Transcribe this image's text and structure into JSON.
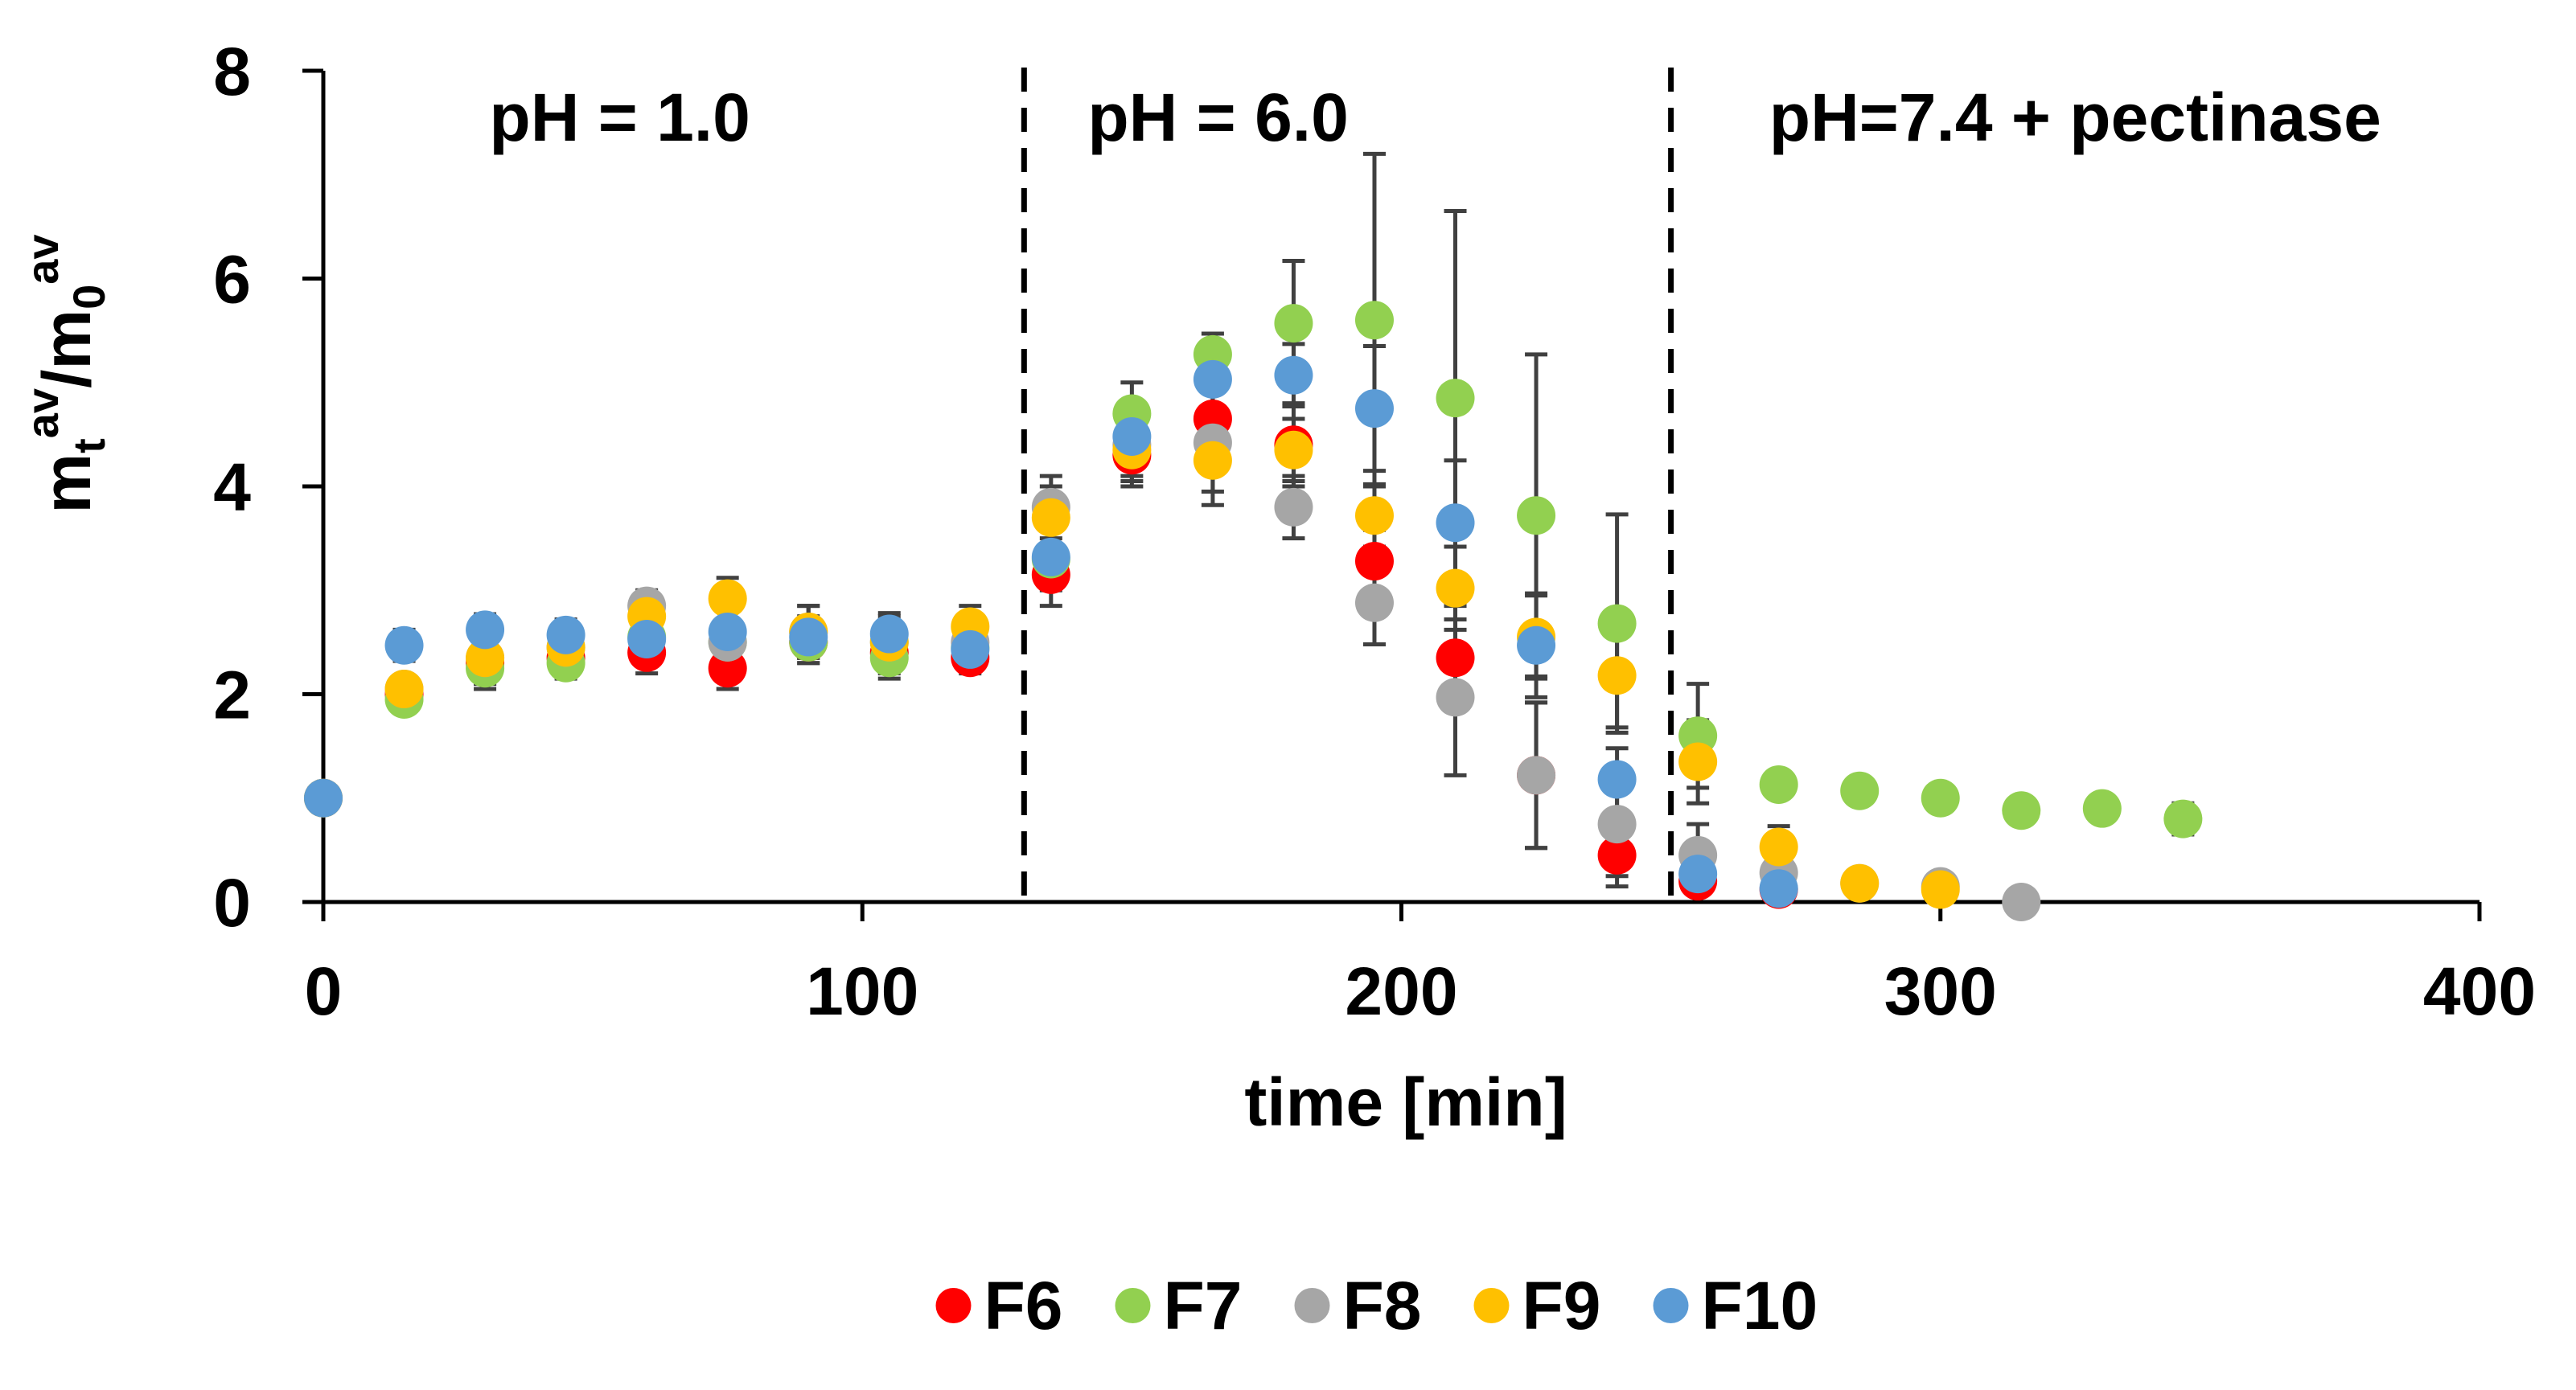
{
  "chart_data": {
    "type": "scatter",
    "title": "",
    "xlabel": "time [min]",
    "ylabel": {
      "base1": "m",
      "sub1": "t",
      "sup1": "av",
      "slash": "/",
      "base2": "m",
      "sub2": "0",
      "sup2": "av"
    },
    "xlim": [
      0,
      400
    ],
    "ylim": [
      0,
      8
    ],
    "x_ticks": [
      0,
      100,
      200,
      300,
      400
    ],
    "y_ticks": [
      0,
      2,
      4,
      6,
      8
    ],
    "grid": false,
    "legend_position": "bottom-center",
    "phase_boundaries": [
      130,
      250
    ],
    "phase_labels": [
      {
        "text": "pH = 1.0",
        "x_center": 55
      },
      {
        "text": "pH = 6.0",
        "x_center": 166
      },
      {
        "text": "pH=7.4 + pectinase",
        "x_center": 325
      }
    ],
    "series": [
      {
        "name": "F6",
        "color": "#ff0000",
        "x": [
          0,
          15,
          30,
          45,
          60,
          75,
          90,
          105,
          120,
          135,
          150,
          165,
          180,
          195,
          210,
          225,
          240,
          255,
          270
        ],
        "y": [
          1.0,
          2.0,
          2.3,
          2.35,
          2.4,
          2.25,
          2.5,
          2.4,
          2.35,
          3.15,
          4.3,
          4.65,
          4.4,
          3.28,
          2.35,
          1.22,
          0.45,
          0.2,
          0.12
        ],
        "err": [
          0.05,
          0.1,
          0.2,
          0.15,
          0.2,
          0.2,
          0.2,
          0.2,
          0.15,
          0.3,
          0.3,
          0.4,
          0.4,
          0.3,
          0.5,
          0.7,
          0.3,
          0.2,
          0.1
        ]
      },
      {
        "name": "F7",
        "color": "#92d050",
        "x": [
          0,
          15,
          30,
          45,
          60,
          75,
          90,
          105,
          120,
          135,
          150,
          165,
          180,
          195,
          210,
          225,
          240,
          255,
          270,
          285,
          300,
          315,
          330,
          345
        ],
        "y": [
          1.0,
          1.95,
          2.25,
          2.3,
          2.55,
          2.5,
          2.5,
          2.35,
          2.45,
          3.3,
          4.7,
          5.27,
          5.57,
          5.6,
          4.85,
          3.72,
          2.68,
          1.6,
          1.13,
          1.07,
          1.0,
          0.88,
          0.9,
          0.8
        ],
        "err": [
          0.05,
          0.1,
          0.2,
          0.15,
          0.2,
          0.2,
          0.2,
          0.2,
          0.2,
          0.3,
          0.3,
          0.2,
          0.6,
          1.6,
          1.8,
          1.55,
          1.05,
          0.5,
          0.1,
          0.05,
          0.05,
          0.05,
          0.05,
          0.15
        ]
      },
      {
        "name": "F8",
        "color": "#a6a6a6",
        "x": [
          0,
          15,
          30,
          45,
          60,
          75,
          90,
          105,
          120,
          135,
          150,
          165,
          180,
          195,
          210,
          225,
          240,
          255,
          270,
          285,
          300,
          315
        ],
        "y": [
          1.0,
          2.05,
          2.35,
          2.45,
          2.85,
          2.5,
          2.6,
          2.5,
          2.5,
          3.8,
          4.4,
          4.42,
          3.8,
          2.88,
          1.97,
          1.22,
          0.75,
          0.45,
          0.28,
          0.18,
          0.15,
          0.0
        ],
        "err": [
          0.05,
          0.1,
          0.25,
          0.15,
          0.15,
          0.15,
          0.25,
          0.2,
          0.2,
          0.3,
          0.3,
          0.6,
          0.3,
          0.4,
          0.75,
          0.7,
          0.5,
          0.3,
          0.1,
          0.05,
          0.05,
          0.02
        ]
      },
      {
        "name": "F9",
        "color": "#ffc000",
        "x": [
          0,
          15,
          30,
          45,
          60,
          75,
          90,
          105,
          120,
          135,
          150,
          165,
          180,
          195,
          210,
          225,
          240,
          255,
          270,
          285,
          300
        ],
        "y": [
          1.0,
          2.05,
          2.35,
          2.45,
          2.75,
          2.92,
          2.6,
          2.5,
          2.65,
          3.7,
          4.35,
          4.25,
          4.35,
          3.72,
          3.02,
          2.55,
          2.18,
          1.35,
          0.53,
          0.18,
          0.12
        ],
        "err": [
          0.05,
          0.1,
          0.2,
          0.15,
          0.2,
          0.2,
          0.25,
          0.25,
          0.2,
          0.3,
          0.3,
          0.3,
          0.3,
          0.3,
          0.4,
          0.4,
          0.5,
          0.4,
          0.2,
          0.05,
          0.05
        ]
      },
      {
        "name": "F10",
        "color": "#5b9bd5",
        "x": [
          0,
          15,
          30,
          45,
          60,
          75,
          90,
          105,
          120,
          135,
          150,
          165,
          180,
          195,
          210,
          225,
          240,
          255,
          270
        ],
        "y": [
          1.0,
          2.47,
          2.62,
          2.57,
          2.53,
          2.6,
          2.55,
          2.58,
          2.43,
          3.32,
          4.48,
          5.03,
          5.07,
          4.75,
          3.65,
          2.47,
          1.18,
          0.27,
          0.13
        ],
        "err": [
          0.05,
          0.15,
          0.15,
          0.15,
          0.2,
          0.2,
          0.2,
          0.2,
          0.2,
          0.3,
          0.3,
          0.3,
          0.3,
          0.6,
          0.6,
          0.5,
          0.3,
          0.2,
          0.1
        ]
      }
    ]
  }
}
